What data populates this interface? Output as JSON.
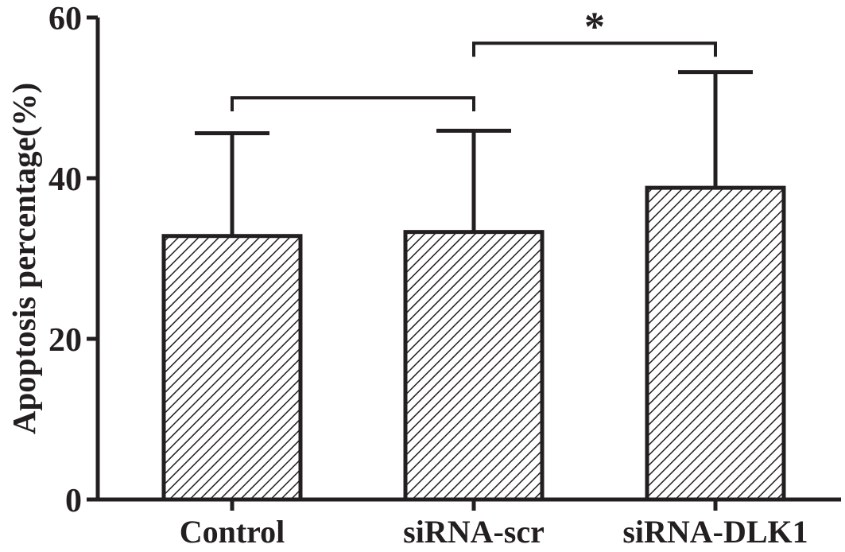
{
  "chart_data": {
    "type": "bar",
    "title": "",
    "xlabel": "",
    "ylabel": "Apoptosis percentage(%)",
    "ylim": [
      0,
      60
    ],
    "yticks": [
      0,
      20,
      40,
      60
    ],
    "categories": [
      "Control",
      "siRNA-scr",
      "siRNA-DLK1"
    ],
    "values": [
      32.8,
      33.3,
      38.8
    ],
    "error_upper": [
      45.6,
      45.9,
      53.2
    ],
    "bar_fill": "diagonal hatch",
    "grid": false,
    "legend": "none",
    "significance": [
      {
        "from": "Control",
        "to": "siRNA-scr",
        "y": 50,
        "label": ""
      },
      {
        "from": "siRNA-scr",
        "to": "siRNA-DLK1",
        "y": 56.8,
        "label": "*"
      }
    ]
  },
  "colors": {
    "ink": "#231f20",
    "background": "#ffffff",
    "bar_fill": "#ffffff"
  }
}
